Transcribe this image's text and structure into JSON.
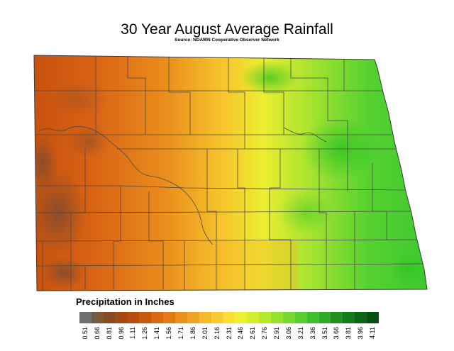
{
  "title": "30 Year August Average Rainfall",
  "source": "Source: NDAWN Cooperative Observer Network",
  "legend": {
    "title": "Precipitation in Inches",
    "ticks": [
      "0.51",
      "0.66",
      "0.81",
      "0.96",
      "1.11",
      "1.26",
      "1.41",
      "1.56",
      "1.71",
      "1.86",
      "2.01",
      "2.16",
      "2.31",
      "2.46",
      "2.61",
      "2.76",
      "2.91",
      "3.06",
      "3.21",
      "3.36",
      "3.51",
      "3.66",
      "3.81",
      "3.96",
      "4.11"
    ],
    "colors": [
      "#6e6e6e",
      "#7a5a3f",
      "#8a4a1f",
      "#a24a12",
      "#b54d0e",
      "#c85a10",
      "#d86a14",
      "#e27a1a",
      "#ea8e1e",
      "#f0a226",
      "#f5b82e",
      "#f8cc30",
      "#f7e030",
      "#ecf030",
      "#d6ee30",
      "#b6e830",
      "#96e030",
      "#76d830",
      "#58cc30",
      "#40be2c",
      "#2ea826",
      "#209020",
      "#157a1a",
      "#0e6414",
      "#0a4e10"
    ]
  },
  "map": {
    "region": "North Dakota",
    "gradient": "west low (orange-brown) to east high (green)"
  }
}
